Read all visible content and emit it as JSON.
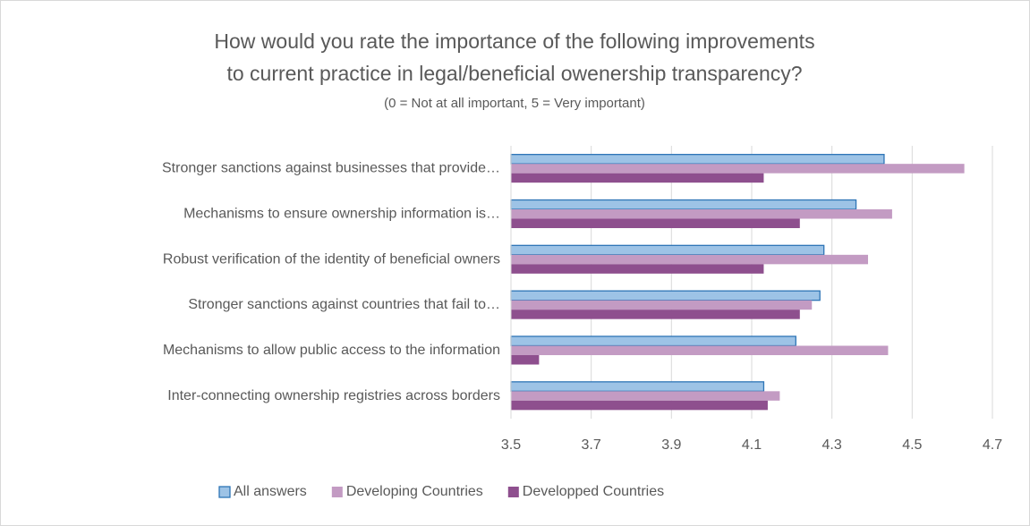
{
  "chart_data": {
    "type": "hbar",
    "title": [
      "How would you rate the importance of the following improvements",
      "to current practice in legal/beneficial owenership transparency?"
    ],
    "subtitle": "(0 = Not at all important, 5 = Very important)",
    "categories": [
      "Stronger sanctions against businesses that provide…",
      "Mechanisms to ensure ownership information is…",
      "Robust verification of the identity of beneficial owners",
      "Stronger sanctions against countries that fail to…",
      "Mechanisms to allow public access to the information",
      "Inter-connecting ownership registries across borders"
    ],
    "series": [
      {
        "name": "All answers",
        "color": "#9dc3e6",
        "values": [
          4.43,
          4.36,
          4.28,
          4.27,
          4.21,
          4.13
        ]
      },
      {
        "name": "Developing Countries",
        "color": "#c39bc3",
        "values": [
          4.63,
          4.45,
          4.39,
          4.25,
          4.44,
          4.17
        ]
      },
      {
        "name": "Developped Countries",
        "color": "#8e4f8e",
        "values": [
          4.13,
          4.22,
          4.13,
          4.22,
          3.57,
          4.14
        ]
      }
    ],
    "xlim": [
      3.5,
      4.7
    ],
    "xticks": [
      3.5,
      3.7,
      3.9,
      4.1,
      4.3,
      4.5,
      4.7
    ],
    "grid": true,
    "legend": "bottom"
  }
}
